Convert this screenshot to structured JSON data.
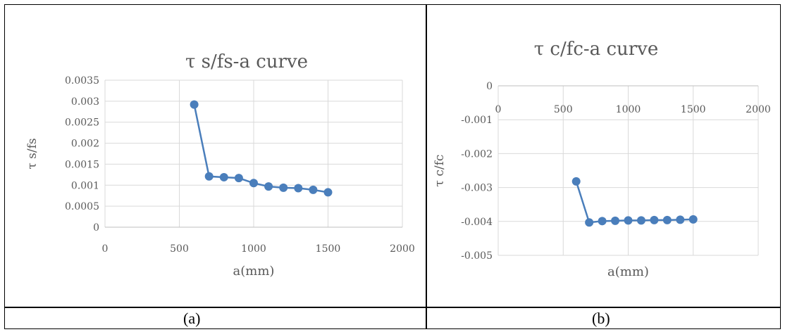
{
  "captions": [
    "(a)",
    "(b)"
  ],
  "chart_data": [
    {
      "type": "line",
      "title": "τ s/fs-a curve",
      "xlabel": "a(mm)",
      "ylabel": "τ s/fs",
      "xlim": [
        0,
        2000
      ],
      "ylim": [
        0,
        0.0035
      ],
      "x_ticks": [
        "0",
        "500",
        "1000",
        "1500",
        "2000"
      ],
      "y_ticks": [
        "0",
        "0.0005",
        "0.001",
        "0.0015",
        "0.002",
        "0.0025",
        "0.003",
        "0.0035"
      ],
      "grid": true,
      "series": [
        {
          "x": [
            600,
            700,
            800,
            900,
            1000,
            1100,
            1200,
            1300,
            1400,
            1500
          ],
          "y": [
            0.00292,
            0.00121,
            0.00119,
            0.00117,
            0.00105,
            0.00097,
            0.00094,
            0.00093,
            0.00089,
            0.00083
          ]
        }
      ],
      "color": "#4a7ebb"
    },
    {
      "type": "line",
      "title": "τ c/fc-a curve",
      "xlabel": "a(mm)",
      "ylabel": "τ c/fc",
      "xlim": [
        0,
        2000
      ],
      "ylim": [
        -0.005,
        0
      ],
      "x_ticks": [
        "0",
        "500",
        "1000",
        "1500",
        "2000"
      ],
      "y_ticks": [
        "0",
        "-0.001",
        "-0.002",
        "-0.003",
        "-0.004",
        "-0.005"
      ],
      "grid": true,
      "series": [
        {
          "x": [
            600,
            700,
            800,
            900,
            1000,
            1100,
            1200,
            1300,
            1400,
            1500
          ],
          "y": [
            -0.00282,
            -0.00403,
            -0.00399,
            -0.00398,
            -0.00397,
            -0.00397,
            -0.00396,
            -0.00396,
            -0.00395,
            -0.00394
          ]
        }
      ],
      "color": "#4a7ebb"
    }
  ]
}
